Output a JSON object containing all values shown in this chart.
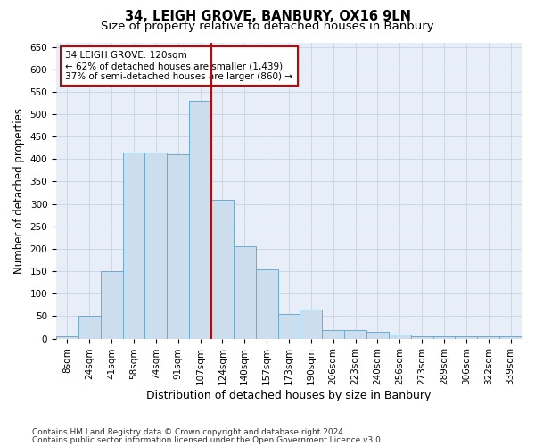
{
  "title": "34, LEIGH GROVE, BANBURY, OX16 9LN",
  "subtitle": "Size of property relative to detached houses in Banbury",
  "xlabel": "Distribution of detached houses by size in Banbury",
  "ylabel": "Number of detached properties",
  "categories": [
    "8sqm",
    "24sqm",
    "41sqm",
    "58sqm",
    "74sqm",
    "91sqm",
    "107sqm",
    "124sqm",
    "140sqm",
    "157sqm",
    "173sqm",
    "190sqm",
    "206sqm",
    "223sqm",
    "240sqm",
    "256sqm",
    "273sqm",
    "289sqm",
    "306sqm",
    "322sqm",
    "339sqm"
  ],
  "values": [
    5,
    50,
    150,
    415,
    415,
    410,
    530,
    310,
    205,
    155,
    55,
    65,
    20,
    20,
    15,
    10,
    5,
    5,
    5,
    5,
    5
  ],
  "bar_color": "#ccdded",
  "bar_edge_color": "#6baad0",
  "vline_x_index": 7,
  "vline_color": "#cc0000",
  "annotation_text": "34 LEIGH GROVE: 120sqm\n← 62% of detached houses are smaller (1,439)\n37% of semi-detached houses are larger (860) →",
  "annotation_bbox_color": "white",
  "annotation_bbox_edge": "#cc0000",
  "ylim": [
    0,
    660
  ],
  "yticks": [
    0,
    50,
    100,
    150,
    200,
    250,
    300,
    350,
    400,
    450,
    500,
    550,
    600,
    650
  ],
  "grid_color": "#c8d4e4",
  "background_color": "#e8eef8",
  "footer_line1": "Contains HM Land Registry data © Crown copyright and database right 2024.",
  "footer_line2": "Contains public sector information licensed under the Open Government Licence v3.0.",
  "title_fontsize": 10.5,
  "subtitle_fontsize": 9.5,
  "xlabel_fontsize": 9,
  "ylabel_fontsize": 8.5,
  "tick_fontsize": 7.5,
  "annotation_fontsize": 7.5,
  "footer_fontsize": 6.5
}
